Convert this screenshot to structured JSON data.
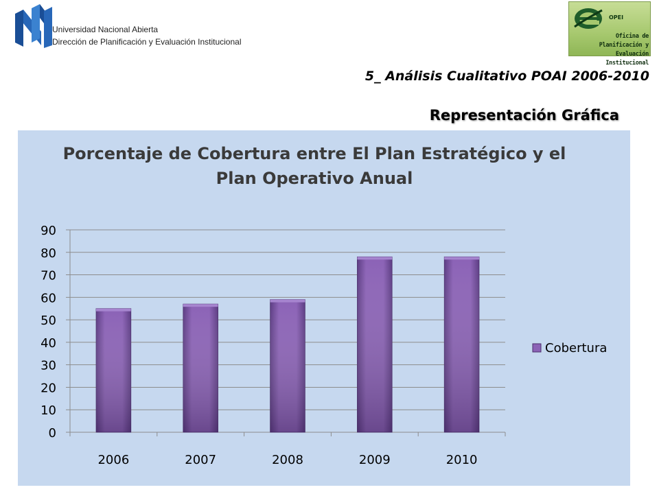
{
  "header": {
    "institution_line1": "Universidad Nacional Abierta",
    "institution_line2": "Dirección de Planificación y Evaluación Institucional",
    "una_logo_icon": "una-logo-icon",
    "opei_logo": {
      "icon": "opei-e-logo-icon",
      "abbr": "OPEI",
      "name_line1": "Oficina de Planificación y",
      "name_line2": "Evaluación Institucional"
    }
  },
  "slide": {
    "subtitle": "5_ Análisis Cualitativo POAI 2006-2010",
    "section_title": "Representación Gráfica"
  },
  "colors": {
    "panel_background": "#c6d8ef",
    "bar_fill": "#8b62b6",
    "bar_dark": "#5c3c83",
    "gridline": "#8c8c8c"
  },
  "chart_data": {
    "type": "bar",
    "title_line1": "Porcentaje de Cobertura entre El Plan Estratégico y el",
    "title_line2": "Plan Operativo Anual",
    "categories": [
      "2006",
      "2007",
      "2008",
      "2009",
      "2010"
    ],
    "series": [
      {
        "name": "Cobertura",
        "values": [
          55,
          57,
          59,
          78,
          78
        ]
      }
    ],
    "ylim": [
      0,
      90
    ],
    "yticks": [
      0,
      10,
      20,
      30,
      40,
      50,
      60,
      70,
      80,
      90
    ],
    "grid": true,
    "legend": "right"
  }
}
